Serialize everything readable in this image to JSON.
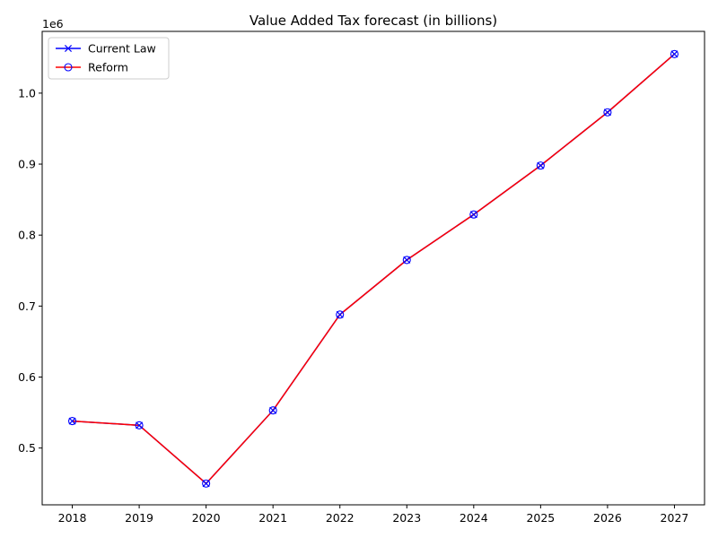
{
  "chart_data": {
    "type": "line",
    "title": "Value Added Tax forecast (in billions)",
    "xlabel": "",
    "ylabel": "",
    "y_offset_label": "1e6",
    "x": [
      2018,
      2019,
      2020,
      2021,
      2022,
      2023,
      2024,
      2025,
      2026,
      2027
    ],
    "x_tick_labels": [
      "2018",
      "2019",
      "2020",
      "2021",
      "2022",
      "2023",
      "2024",
      "2025",
      "2026",
      "2027"
    ],
    "y_ticks": [
      0.5,
      0.6,
      0.7,
      0.8,
      0.9,
      1.0
    ],
    "y_tick_labels": [
      "0.5",
      "0.6",
      "0.7",
      "0.8",
      "0.9",
      "1.0"
    ],
    "xlim": [
      2017.55,
      2027.45
    ],
    "ylim": [
      0.42,
      1.087
    ],
    "grid": false,
    "legend_position": "upper-left",
    "series": [
      {
        "name": "Current Law",
        "color": "#0000ff",
        "marker": "x",
        "values": [
          0.538,
          0.532,
          0.45,
          0.553,
          0.688,
          0.765,
          0.829,
          0.898,
          0.973,
          1.055
        ]
      },
      {
        "name": "Reform",
        "color": "#ff0000",
        "marker": "circle",
        "marker_edge_color": "#0000ff",
        "values": [
          0.538,
          0.532,
          0.45,
          0.553,
          0.688,
          0.765,
          0.829,
          0.898,
          0.973,
          1.055
        ]
      }
    ]
  }
}
